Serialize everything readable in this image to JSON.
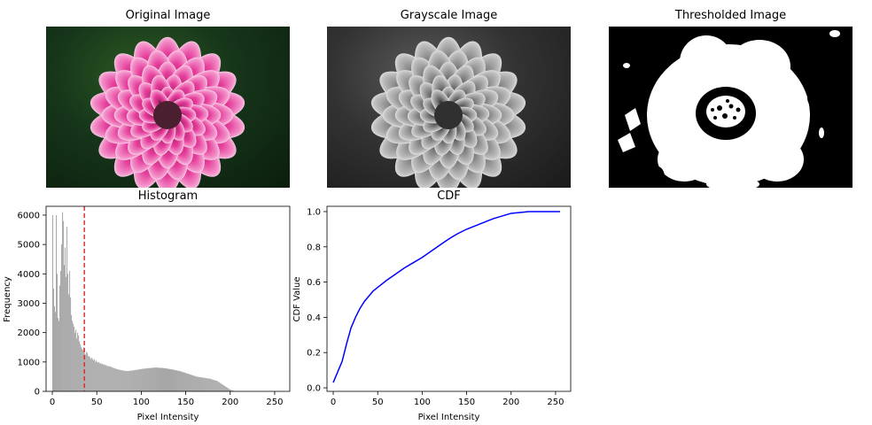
{
  "panels": {
    "original": {
      "title": "Original Image"
    },
    "grayscale": {
      "title": "Grayscale Image"
    },
    "thresholded": {
      "title": "Thresholded Image"
    }
  },
  "chart_data": [
    {
      "type": "bar",
      "title": "Histogram",
      "xlabel": "Pixel Intensity",
      "ylabel": "Frequency",
      "xlim": [
        -7,
        267
      ],
      "ylim": [
        0,
        6300
      ],
      "xticks": [
        "0",
        "50",
        "100",
        "150",
        "200",
        "250"
      ],
      "yticks": [
        "0",
        "1000",
        "2000",
        "3000",
        "4000",
        "5000",
        "6000"
      ],
      "bar_color": "#a6a6a6",
      "threshold": {
        "x": 36,
        "color": "#d62728",
        "style": "dashed"
      },
      "bins": {
        "start": 0,
        "width": 1
      },
      "values": [
        6000,
        3500,
        2900,
        2700,
        6000,
        4000,
        2500,
        2400,
        3600,
        4100,
        5000,
        6100,
        5800,
        4300,
        4900,
        3900,
        5600,
        4000,
        3300,
        4100,
        3200,
        2600,
        2400,
        2300,
        2200,
        2000,
        2100,
        1800,
        2000,
        1900,
        1700,
        1600,
        1500,
        1450,
        1400,
        1500,
        1300,
        1250,
        1350,
        1300,
        1200,
        1200,
        1150,
        1100,
        1150,
        1100,
        1050,
        1100,
        1000,
        1050,
        1000,
        980,
        1000,
        950,
        960,
        930,
        940,
        900,
        920,
        880,
        900,
        860,
        870,
        850,
        860,
        840,
        830,
        820,
        800,
        790,
        780,
        770,
        760,
        750,
        740,
        740,
        730,
        720,
        720,
        710,
        700,
        700,
        700,
        690,
        690,
        690,
        700,
        700,
        710,
        710,
        710,
        720,
        720,
        730,
        730,
        740,
        740,
        750,
        750,
        760,
        760,
        770,
        770,
        770,
        780,
        780,
        780,
        790,
        790,
        790,
        800,
        800,
        800,
        800,
        810,
        810,
        810,
        810,
        810,
        800,
        800,
        800,
        800,
        800,
        790,
        790,
        790,
        780,
        780,
        770,
        770,
        760,
        760,
        750,
        750,
        740,
        740,
        730,
        720,
        720,
        710,
        700,
        700,
        690,
        680,
        670,
        660,
        650,
        640,
        630,
        620,
        610,
        600,
        590,
        580,
        570,
        560,
        550,
        540,
        530,
        520,
        510,
        500,
        500,
        490,
        490,
        480,
        480,
        470,
        470,
        460,
        460,
        450,
        450,
        440,
        440,
        430,
        430,
        420,
        410,
        400,
        390,
        380,
        370,
        360,
        350,
        330,
        310,
        290,
        270,
        250,
        230,
        210,
        190,
        170,
        150,
        130,
        110,
        90,
        70,
        50,
        40,
        30,
        20,
        10,
        5
      ]
    },
    {
      "type": "line",
      "title": "CDF",
      "xlabel": "Pixel Intensity",
      "ylabel": "CDF Value",
      "xlim": [
        -7,
        267
      ],
      "ylim": [
        -0.02,
        1.03
      ],
      "xticks": [
        "0",
        "50",
        "100",
        "150",
        "200",
        "250"
      ],
      "yticks": [
        "0.0",
        "0.2",
        "0.4",
        "0.6",
        "0.8",
        "1.0"
      ],
      "line_color": "#0000ff",
      "x": [
        0,
        5,
        10,
        15,
        20,
        25,
        30,
        35,
        40,
        45,
        50,
        60,
        70,
        80,
        90,
        100,
        110,
        120,
        130,
        140,
        150,
        160,
        170,
        180,
        190,
        200,
        210,
        220,
        230,
        240,
        255
      ],
      "y": [
        0.03,
        0.09,
        0.15,
        0.25,
        0.34,
        0.4,
        0.45,
        0.49,
        0.52,
        0.55,
        0.57,
        0.61,
        0.645,
        0.68,
        0.71,
        0.74,
        0.775,
        0.81,
        0.845,
        0.875,
        0.9,
        0.92,
        0.94,
        0.96,
        0.975,
        0.99,
        0.995,
        1.0,
        1.0,
        1.0,
        1.0
      ]
    }
  ]
}
